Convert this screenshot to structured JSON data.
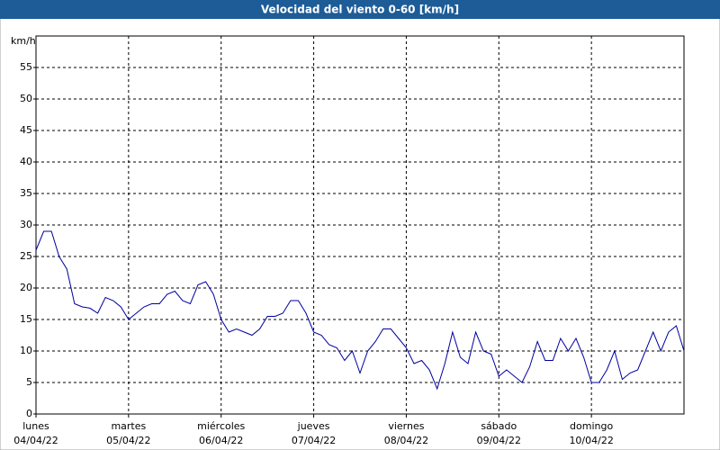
{
  "chart_data": {
    "type": "line",
    "title": "Velocidad del viento 0-60 [km/h]",
    "y_label": "km/h",
    "x": [
      0,
      2,
      4,
      6,
      8,
      10,
      12,
      14,
      16,
      18,
      20,
      22,
      24,
      26,
      28,
      30,
      32,
      34,
      36,
      38,
      40,
      42,
      44,
      46,
      48,
      50,
      52,
      54,
      56,
      58,
      60,
      62,
      64,
      66,
      68,
      70,
      72,
      74,
      76,
      78,
      80,
      82,
      84,
      86,
      88,
      90,
      92,
      94,
      96,
      98,
      100,
      102,
      104,
      106,
      108,
      110,
      112,
      114,
      116,
      118,
      120,
      122,
      124,
      126,
      128,
      130,
      132,
      134,
      136,
      138,
      140,
      142,
      144,
      146,
      148,
      150,
      152,
      154,
      156,
      158,
      160,
      162,
      164,
      166,
      168
    ],
    "series": [
      {
        "name": "Velocidad del viento",
        "color": "#0000a0",
        "values": [
          26,
          29,
          29,
          25,
          23,
          17.5,
          17,
          16.8,
          16,
          18.5,
          18,
          17,
          15,
          16,
          17,
          17.5,
          17.5,
          19,
          19.5,
          18,
          17.5,
          20.5,
          21,
          19,
          15,
          13,
          13.5,
          13,
          12.5,
          13.5,
          15.5,
          15.5,
          16,
          18,
          18,
          16,
          13,
          12.5,
          11,
          10.5,
          8.5,
          10,
          6.5,
          10,
          11.5,
          13.5,
          13.5,
          12,
          10.5,
          8,
          8.5,
          7,
          4,
          8,
          13,
          9,
          8,
          13,
          10,
          9.5,
          6,
          7,
          6,
          5,
          7.5,
          11.5,
          8.5,
          8.5,
          12,
          10,
          12,
          9,
          5,
          5,
          7,
          10,
          5.5,
          6.5,
          7,
          10,
          13,
          10,
          13,
          14,
          10
        ]
      }
    ],
    "xlim": [
      0,
      168
    ],
    "xticks": [
      {
        "value": 0,
        "label": "lunes",
        "date": "04/04/22"
      },
      {
        "value": 24,
        "label": "martes",
        "date": "05/04/22"
      },
      {
        "value": 48,
        "label": "miércoles",
        "date": "06/04/22"
      },
      {
        "value": 72,
        "label": "jueves",
        "date": "07/04/22"
      },
      {
        "value": 96,
        "label": "viernes",
        "date": "08/04/22"
      },
      {
        "value": 120,
        "label": "sábado",
        "date": "09/04/22"
      },
      {
        "value": 144,
        "label": "domingo",
        "date": "10/04/22"
      }
    ],
    "ylim": [
      0,
      60
    ],
    "yticks": [
      0,
      5,
      10,
      15,
      20,
      25,
      30,
      35,
      40,
      45,
      50,
      55
    ],
    "grid": true
  }
}
